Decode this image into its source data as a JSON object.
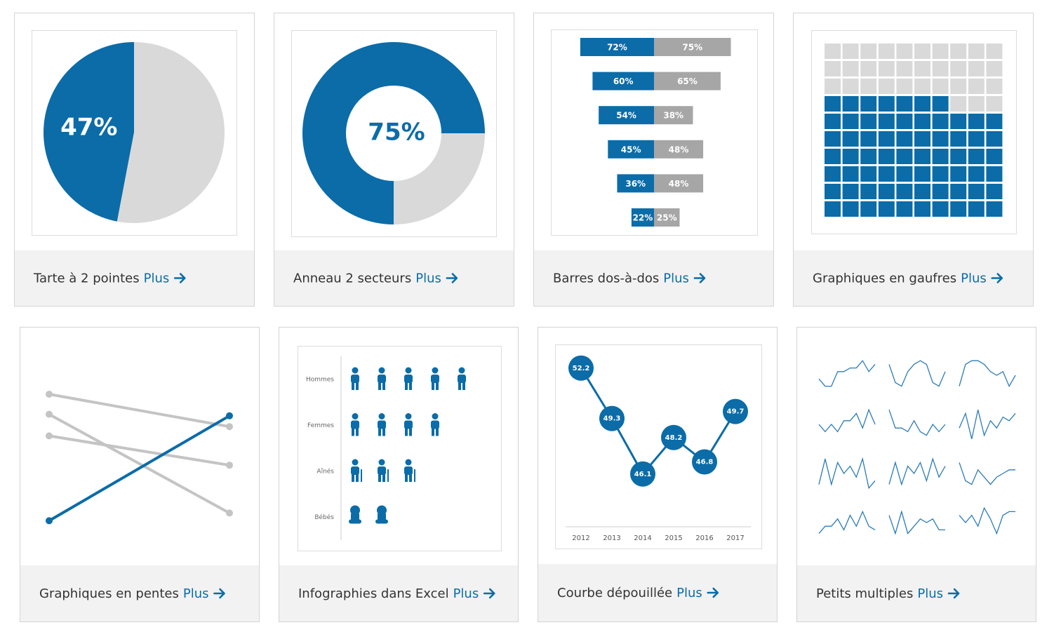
{
  "cards": [
    {
      "title": "Tarte à 2 pointes",
      "link": "Plus",
      "chart": {
        "type": "pie",
        "values": [
          47,
          53
        ],
        "value_labels": [
          "47%",
          null
        ],
        "colors": [
          "#0b6ca8",
          "#d9d9d9"
        ]
      }
    },
    {
      "title": "Anneau 2 secteurs",
      "link": "Plus",
      "chart": {
        "type": "donut",
        "values": [
          75,
          25
        ],
        "value_labels": [
          "75%",
          null
        ],
        "colors": [
          "#0b6ca8",
          "#d9d9d9"
        ]
      }
    },
    {
      "title": "Barres dos-à-dos",
      "link": "Plus",
      "chart": {
        "type": "back-to-back",
        "xlim": [
          0,
          100
        ],
        "series": [
          {
            "color": "#0b6ca8",
            "values": [
              72,
              60,
              54,
              45,
              36,
              22
            ],
            "value_labels": [
              "72%",
              "60%",
              "54%",
              "45%",
              "36%",
              "22%"
            ]
          },
          {
            "color": "#a6a6a6",
            "values": [
              75,
              65,
              38,
              48,
              48,
              25
            ],
            "value_labels": [
              "75%",
              "65%",
              "38%",
              "48%",
              "48%",
              "25%"
            ]
          }
        ]
      }
    },
    {
      "title": "Graphiques en gaufres",
      "link": "Plus",
      "chart": {
        "type": "waffle",
        "value": 67,
        "rows": 10,
        "cols": 10,
        "colors": [
          "#0b6ca8",
          "#d9d9d9"
        ]
      }
    },
    {
      "title": "Graphiques en pentes",
      "link": "Plus",
      "chart": {
        "type": "slope",
        "ylim": [
          0,
          100
        ],
        "series": [
          {
            "color": "#c4c4c4",
            "values": [
              90,
              69
            ]
          },
          {
            "color": "#c4c4c4",
            "values": [
              77,
              13
            ]
          },
          {
            "color": "#c4c4c4",
            "values": [
              63,
              44
            ]
          },
          {
            "color": "#0b6ca8",
            "values": [
              8,
              76
            ]
          }
        ]
      }
    },
    {
      "title": "Infographies dans Excel",
      "link": "Plus",
      "chart": {
        "type": "pictogram",
        "categories": [
          "Hommes",
          "Femmes",
          "Aînés",
          "Bébés"
        ],
        "values": [
          5,
          4,
          3,
          2
        ],
        "color": "#0b6ca8"
      }
    },
    {
      "title": "Courbe dépouillée",
      "link": "Plus",
      "chart": {
        "type": "line",
        "categories": [
          "2012",
          "2013",
          "2014",
          "2015",
          "2016",
          "2017"
        ],
        "values": [
          52.2,
          49.3,
          46.1,
          48.2,
          46.8,
          49.7
        ],
        "ylim": [
          45,
          53
        ],
        "color": "#0b6ca8"
      }
    },
    {
      "title": "Petits multiples",
      "link": "Plus",
      "chart": {
        "type": "small-multiples",
        "ylim": [
          0,
          10
        ],
        "color": "#2b7bb9",
        "series": [
          {
            "values": [
              4,
              2,
              2,
              6,
              6,
              7,
              7,
              9,
              6,
              8
            ]
          },
          {
            "values": [
              8,
              3,
              2,
              6,
              8,
              9,
              8,
              3,
              2,
              6
            ]
          },
          {
            "values": [
              2,
              8,
              9,
              9,
              8,
              6,
              5,
              6,
              2,
              5
            ]
          },
          {
            "values": [
              5,
              3,
              5,
              3,
              6,
              6,
              8,
              4,
              9,
              5
            ]
          },
          {
            "values": [
              9,
              4,
              4,
              3,
              6,
              3,
              2,
              5,
              3,
              5
            ]
          },
          {
            "values": [
              4,
              8,
              1,
              9,
              2,
              6,
              4,
              7,
              6,
              8
            ]
          },
          {
            "values": [
              2,
              9,
              2,
              8,
              5,
              7,
              4,
              9,
              1,
              3
            ]
          },
          {
            "values": [
              2,
              8,
              2,
              7,
              5,
              8,
              3,
              9,
              4,
              7
            ]
          },
          {
            "values": [
              8,
              3,
              2,
              6,
              4,
              2,
              4,
              5,
              6,
              6
            ]
          },
          {
            "values": [
              2,
              4,
              4,
              6,
              3,
              7,
              4,
              8,
              4,
              3
            ]
          },
          {
            "values": [
              7,
              2,
              8,
              2,
              4,
              6,
              5,
              6,
              3,
              3
            ]
          },
          {
            "values": [
              7,
              5,
              7,
              4,
              9,
              6,
              2,
              7,
              8,
              8
            ]
          }
        ]
      }
    }
  ]
}
